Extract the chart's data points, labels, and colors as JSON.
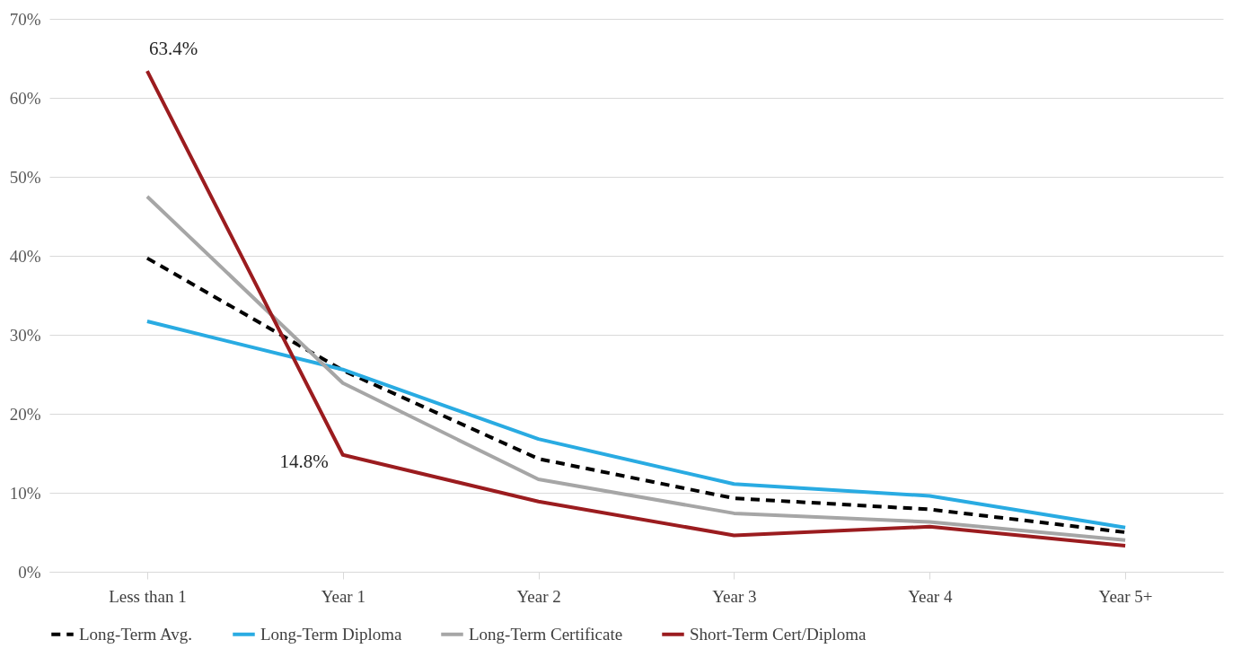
{
  "chart_data": {
    "type": "line",
    "categories": [
      "Less than 1",
      "Year 1",
      "Year 2",
      "Year 3",
      "Year 4",
      "Year 5+"
    ],
    "series": [
      {
        "name": "Long-Term Avg.",
        "color": "#000000",
        "line_style": "dashed",
        "values": [
          39.7,
          25.5,
          14.3,
          9.3,
          7.9,
          5.0
        ]
      },
      {
        "name": "Long-Term Diploma",
        "color": "#29abe2",
        "line_style": "solid",
        "values": [
          31.7,
          25.6,
          16.8,
          11.1,
          9.6,
          5.6
        ]
      },
      {
        "name": "Long-Term Certificate",
        "color": "#a6a6a6",
        "line_style": "solid",
        "values": [
          47.5,
          23.9,
          11.7,
          7.4,
          6.3,
          4.0
        ]
      },
      {
        "name": "Short-Term Cert/Diploma",
        "color": "#9b1c1f",
        "line_style": "solid",
        "values": [
          63.4,
          14.8,
          8.9,
          4.6,
          5.7,
          3.3
        ],
        "value_labels": [
          "63.4%",
          "14.8%",
          null,
          null,
          null,
          null
        ]
      }
    ],
    "ylim": [
      0,
      70
    ],
    "yticks": [
      {
        "value": 0,
        "label": "0%"
      },
      {
        "value": 10,
        "label": "10%"
      },
      {
        "value": 20,
        "label": "20%"
      },
      {
        "value": 30,
        "label": "30%"
      },
      {
        "value": 40,
        "label": "40%"
      },
      {
        "value": 50,
        "label": "50%"
      },
      {
        "value": 60,
        "label": "60%"
      },
      {
        "value": 70,
        "label": "70%"
      }
    ],
    "grid": "y",
    "legend": "bottom",
    "marker": "none"
  }
}
